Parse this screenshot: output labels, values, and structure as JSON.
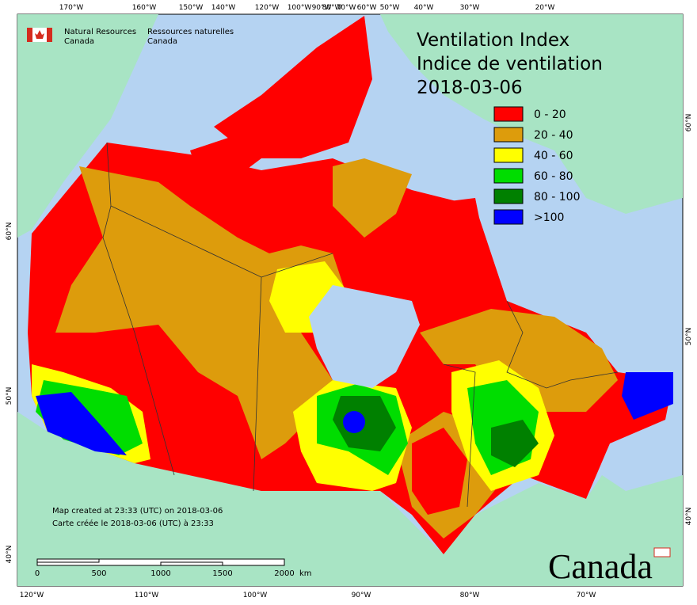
{
  "header": {
    "agency_en": [
      "Natural Resources",
      "Canada"
    ],
    "agency_fr": [
      "Ressources naturelles",
      "Canada"
    ]
  },
  "title": {
    "en": "Ventilation Index",
    "fr": "Indice de ventilation",
    "date": "2018-03-06"
  },
  "legend": [
    {
      "label": "0 - 20",
      "color": "#ff0000"
    },
    {
      "label": "20 - 40",
      "color": "#dd9c0c"
    },
    {
      "label": "40 - 60",
      "color": "#ffff00"
    },
    {
      "label": "60 - 80",
      "color": "#00dd00"
    },
    {
      "label": "80 - 100",
      "color": "#008000"
    },
    {
      "label": ">100",
      "color": "#0000ff"
    }
  ],
  "graticule": {
    "top": [
      "170°W",
      "160°W",
      "150°W",
      "140°W",
      "120°W",
      "100°W",
      "90°W",
      "80°W",
      "70°W",
      "60°W",
      "50°W",
      "40°W",
      "30°W",
      "20°W"
    ],
    "bottom": [
      "120°W",
      "110°W",
      "100°W",
      "90°W",
      "80°W",
      "70°W"
    ],
    "left": [
      "60°N",
      "50°N",
      "40°N"
    ],
    "right": [
      "60°N",
      "50°N",
      "40°N"
    ]
  },
  "notes": [
    "Map created at 23:33 (UTC) on 2018-03-06",
    "Carte créée le 2018-03-06 (UTC) à 23:33"
  ],
  "scale_bar": {
    "ticks": [
      "0",
      "500",
      "1000",
      "1500",
      "2000"
    ],
    "unit": "km"
  },
  "wordmark": "Canada"
}
